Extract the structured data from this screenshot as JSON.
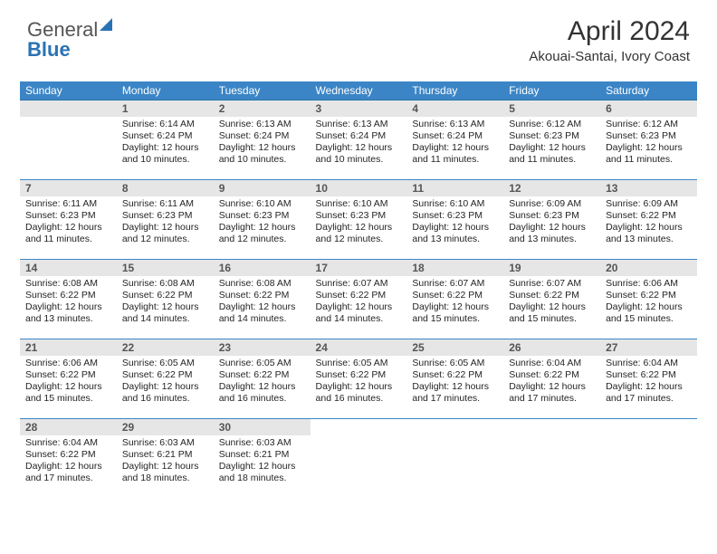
{
  "logo": {
    "line1": "General",
    "line2": "Blue"
  },
  "header": {
    "month_title": "April 2024",
    "location": "Akouai-Santai, Ivory Coast"
  },
  "colors": {
    "header_bg": "#3b85c6",
    "header_text": "#ffffff",
    "daynum_bg": "#e6e6e6",
    "row_divider": "#3b85c6",
    "text": "#242424",
    "logo_blue": "#2a72b5"
  },
  "day_headers": [
    "Sunday",
    "Monday",
    "Tuesday",
    "Wednesday",
    "Thursday",
    "Friday",
    "Saturday"
  ],
  "weeks": [
    [
      null,
      {
        "n": "1",
        "sr": "Sunrise: 6:14 AM",
        "ss": "Sunset: 6:24 PM",
        "dl": "Daylight: 12 hours and 10 minutes."
      },
      {
        "n": "2",
        "sr": "Sunrise: 6:13 AM",
        "ss": "Sunset: 6:24 PM",
        "dl": "Daylight: 12 hours and 10 minutes."
      },
      {
        "n": "3",
        "sr": "Sunrise: 6:13 AM",
        "ss": "Sunset: 6:24 PM",
        "dl": "Daylight: 12 hours and 10 minutes."
      },
      {
        "n": "4",
        "sr": "Sunrise: 6:13 AM",
        "ss": "Sunset: 6:24 PM",
        "dl": "Daylight: 12 hours and 11 minutes."
      },
      {
        "n": "5",
        "sr": "Sunrise: 6:12 AM",
        "ss": "Sunset: 6:23 PM",
        "dl": "Daylight: 12 hours and 11 minutes."
      },
      {
        "n": "6",
        "sr": "Sunrise: 6:12 AM",
        "ss": "Sunset: 6:23 PM",
        "dl": "Daylight: 12 hours and 11 minutes."
      }
    ],
    [
      {
        "n": "7",
        "sr": "Sunrise: 6:11 AM",
        "ss": "Sunset: 6:23 PM",
        "dl": "Daylight: 12 hours and 11 minutes."
      },
      {
        "n": "8",
        "sr": "Sunrise: 6:11 AM",
        "ss": "Sunset: 6:23 PM",
        "dl": "Daylight: 12 hours and 12 minutes."
      },
      {
        "n": "9",
        "sr": "Sunrise: 6:10 AM",
        "ss": "Sunset: 6:23 PM",
        "dl": "Daylight: 12 hours and 12 minutes."
      },
      {
        "n": "10",
        "sr": "Sunrise: 6:10 AM",
        "ss": "Sunset: 6:23 PM",
        "dl": "Daylight: 12 hours and 12 minutes."
      },
      {
        "n": "11",
        "sr": "Sunrise: 6:10 AM",
        "ss": "Sunset: 6:23 PM",
        "dl": "Daylight: 12 hours and 13 minutes."
      },
      {
        "n": "12",
        "sr": "Sunrise: 6:09 AM",
        "ss": "Sunset: 6:23 PM",
        "dl": "Daylight: 12 hours and 13 minutes."
      },
      {
        "n": "13",
        "sr": "Sunrise: 6:09 AM",
        "ss": "Sunset: 6:22 PM",
        "dl": "Daylight: 12 hours and 13 minutes."
      }
    ],
    [
      {
        "n": "14",
        "sr": "Sunrise: 6:08 AM",
        "ss": "Sunset: 6:22 PM",
        "dl": "Daylight: 12 hours and 13 minutes."
      },
      {
        "n": "15",
        "sr": "Sunrise: 6:08 AM",
        "ss": "Sunset: 6:22 PM",
        "dl": "Daylight: 12 hours and 14 minutes."
      },
      {
        "n": "16",
        "sr": "Sunrise: 6:08 AM",
        "ss": "Sunset: 6:22 PM",
        "dl": "Daylight: 12 hours and 14 minutes."
      },
      {
        "n": "17",
        "sr": "Sunrise: 6:07 AM",
        "ss": "Sunset: 6:22 PM",
        "dl": "Daylight: 12 hours and 14 minutes."
      },
      {
        "n": "18",
        "sr": "Sunrise: 6:07 AM",
        "ss": "Sunset: 6:22 PM",
        "dl": "Daylight: 12 hours and 15 minutes."
      },
      {
        "n": "19",
        "sr": "Sunrise: 6:07 AM",
        "ss": "Sunset: 6:22 PM",
        "dl": "Daylight: 12 hours and 15 minutes."
      },
      {
        "n": "20",
        "sr": "Sunrise: 6:06 AM",
        "ss": "Sunset: 6:22 PM",
        "dl": "Daylight: 12 hours and 15 minutes."
      }
    ],
    [
      {
        "n": "21",
        "sr": "Sunrise: 6:06 AM",
        "ss": "Sunset: 6:22 PM",
        "dl": "Daylight: 12 hours and 15 minutes."
      },
      {
        "n": "22",
        "sr": "Sunrise: 6:05 AM",
        "ss": "Sunset: 6:22 PM",
        "dl": "Daylight: 12 hours and 16 minutes."
      },
      {
        "n": "23",
        "sr": "Sunrise: 6:05 AM",
        "ss": "Sunset: 6:22 PM",
        "dl": "Daylight: 12 hours and 16 minutes."
      },
      {
        "n": "24",
        "sr": "Sunrise: 6:05 AM",
        "ss": "Sunset: 6:22 PM",
        "dl": "Daylight: 12 hours and 16 minutes."
      },
      {
        "n": "25",
        "sr": "Sunrise: 6:05 AM",
        "ss": "Sunset: 6:22 PM",
        "dl": "Daylight: 12 hours and 17 minutes."
      },
      {
        "n": "26",
        "sr": "Sunrise: 6:04 AM",
        "ss": "Sunset: 6:22 PM",
        "dl": "Daylight: 12 hours and 17 minutes."
      },
      {
        "n": "27",
        "sr": "Sunrise: 6:04 AM",
        "ss": "Sunset: 6:22 PM",
        "dl": "Daylight: 12 hours and 17 minutes."
      }
    ],
    [
      {
        "n": "28",
        "sr": "Sunrise: 6:04 AM",
        "ss": "Sunset: 6:22 PM",
        "dl": "Daylight: 12 hours and 17 minutes."
      },
      {
        "n": "29",
        "sr": "Sunrise: 6:03 AM",
        "ss": "Sunset: 6:21 PM",
        "dl": "Daylight: 12 hours and 18 minutes."
      },
      {
        "n": "30",
        "sr": "Sunrise: 6:03 AM",
        "ss": "Sunset: 6:21 PM",
        "dl": "Daylight: 12 hours and 18 minutes."
      },
      null,
      null,
      null,
      null
    ]
  ]
}
